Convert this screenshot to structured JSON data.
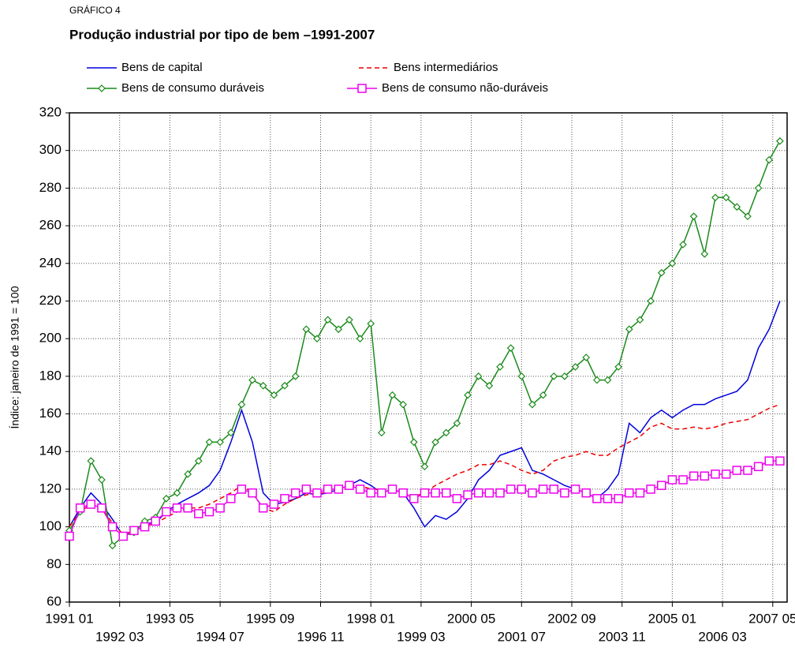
{
  "chart_data": {
    "type": "line",
    "kicker": "GRÁFICO 4",
    "title": "Produção industrial por tipo de bem –1991-2007",
    "ylabel": "Índice: janeiro  de 1991  = 100",
    "x": [
      "1991-01",
      "1991-04",
      "1991-07",
      "1991-10",
      "1992-01",
      "1992-04",
      "1992-07",
      "1992-10",
      "1993-01",
      "1993-04",
      "1993-07",
      "1993-10",
      "1994-01",
      "1994-04",
      "1994-07",
      "1994-10",
      "1995-01",
      "1995-04",
      "1995-07",
      "1995-10",
      "1996-01",
      "1996-04",
      "1996-07",
      "1996-10",
      "1997-01",
      "1997-04",
      "1997-07",
      "1997-10",
      "1998-01",
      "1998-04",
      "1998-07",
      "1998-10",
      "1999-01",
      "1999-04",
      "1999-07",
      "1999-10",
      "2000-01",
      "2000-04",
      "2000-07",
      "2000-10",
      "2001-01",
      "2001-04",
      "2001-07",
      "2001-10",
      "2002-01",
      "2002-04",
      "2002-07",
      "2002-10",
      "2003-01",
      "2003-04",
      "2003-07",
      "2003-10",
      "2004-01",
      "2004-04",
      "2004-07",
      "2004-10",
      "2005-01",
      "2005-04",
      "2005-07",
      "2005-10",
      "2006-01",
      "2006-04",
      "2006-07",
      "2006-10",
      "2007-01",
      "2007-04",
      "2007-07"
    ],
    "series": [
      {
        "name": "Bens de capital",
        "color": "#0000dd",
        "style": "solid",
        "marker": "none",
        "values": [
          100,
          110,
          118,
          112,
          104,
          95,
          98,
          102,
          102,
          108,
          112,
          115,
          118,
          122,
          130,
          145,
          162,
          145,
          118,
          112,
          113,
          115,
          118,
          117,
          118,
          120,
          122,
          125,
          122,
          118,
          120,
          118,
          110,
          100,
          106,
          104,
          108,
          115,
          125,
          130,
          138,
          140,
          142,
          130,
          128,
          125,
          122,
          120,
          118,
          115,
          120,
          128,
          155,
          150,
          158,
          162,
          158,
          162,
          165,
          165,
          168,
          170,
          172,
          178,
          195,
          205,
          220
        ]
      },
      {
        "name": "Bens intermediários",
        "color": "#ee0000",
        "style": "dashed",
        "marker": "none",
        "values": [
          100,
          108,
          112,
          110,
          102,
          96,
          98,
          100,
          102,
          105,
          108,
          110,
          110,
          112,
          115,
          118,
          122,
          118,
          110,
          108,
          112,
          115,
          117,
          118,
          118,
          120,
          122,
          122,
          120,
          120,
          120,
          118,
          116,
          118,
          122,
          125,
          128,
          130,
          133,
          133,
          135,
          133,
          130,
          128,
          130,
          135,
          137,
          138,
          140,
          138,
          138,
          142,
          145,
          148,
          153,
          155,
          152,
          152,
          153,
          152,
          153,
          155,
          156,
          157,
          160,
          163,
          165
        ]
      },
      {
        "name": "Bens de consumo duráveis",
        "color": "#1a8a1a",
        "style": "solid",
        "marker": "diamond",
        "values": [
          98,
          108,
          135,
          125,
          90,
          95,
          97,
          103,
          105,
          115,
          118,
          128,
          135,
          145,
          145,
          150,
          165,
          178,
          175,
          170,
          175,
          180,
          205,
          200,
          210,
          205,
          210,
          200,
          208,
          150,
          170,
          165,
          145,
          132,
          145,
          150,
          155,
          170,
          180,
          175,
          185,
          195,
          180,
          165,
          170,
          180,
          180,
          185,
          190,
          178,
          178,
          185,
          205,
          210,
          220,
          235,
          240,
          250,
          265,
          245,
          275,
          275,
          270,
          265,
          280,
          295,
          305
        ]
      },
      {
        "name": "Bens de consumo não-duráveis",
        "color": "#ee00ee",
        "style": "solid",
        "marker": "square",
        "values": [
          95,
          110,
          112,
          110,
          100,
          95,
          98,
          100,
          103,
          108,
          110,
          110,
          107,
          108,
          110,
          115,
          120,
          118,
          110,
          112,
          115,
          118,
          120,
          118,
          120,
          120,
          122,
          120,
          118,
          118,
          120,
          118,
          115,
          118,
          118,
          118,
          115,
          117,
          118,
          118,
          118,
          120,
          120,
          118,
          120,
          120,
          118,
          120,
          118,
          115,
          115,
          115,
          118,
          118,
          120,
          122,
          125,
          125,
          127,
          127,
          128,
          128,
          130,
          130,
          132,
          135,
          135
        ]
      }
    ],
    "xlim": [
      "1991-01",
      "2007-09"
    ],
    "xticks": [
      {
        "value": "1991-01",
        "label": "1991 01"
      },
      {
        "value": "1992-03",
        "label": "1992 03"
      },
      {
        "value": "1993-05",
        "label": "1993 05"
      },
      {
        "value": "1994-07",
        "label": "1994 07"
      },
      {
        "value": "1995-09",
        "label": "1995 09"
      },
      {
        "value": "1996-11",
        "label": "1996 11"
      },
      {
        "value": "1998-01",
        "label": "1998 01"
      },
      {
        "value": "1999-03",
        "label": "1999 03"
      },
      {
        "value": "2000-05",
        "label": "2000 05"
      },
      {
        "value": "2001-07",
        "label": "2001 07"
      },
      {
        "value": "2002-09",
        "label": "2002 09"
      },
      {
        "value": "2003-11",
        "label": "2003 11"
      },
      {
        "value": "2005-01",
        "label": "2005 01"
      },
      {
        "value": "2006-03",
        "label": "2006 03"
      },
      {
        "value": "2007-05",
        "label": "2007 05"
      }
    ],
    "ylim": [
      60,
      320
    ],
    "yticks": [
      60,
      80,
      100,
      120,
      140,
      160,
      180,
      200,
      220,
      240,
      260,
      280,
      300,
      320
    ],
    "grid": true
  }
}
